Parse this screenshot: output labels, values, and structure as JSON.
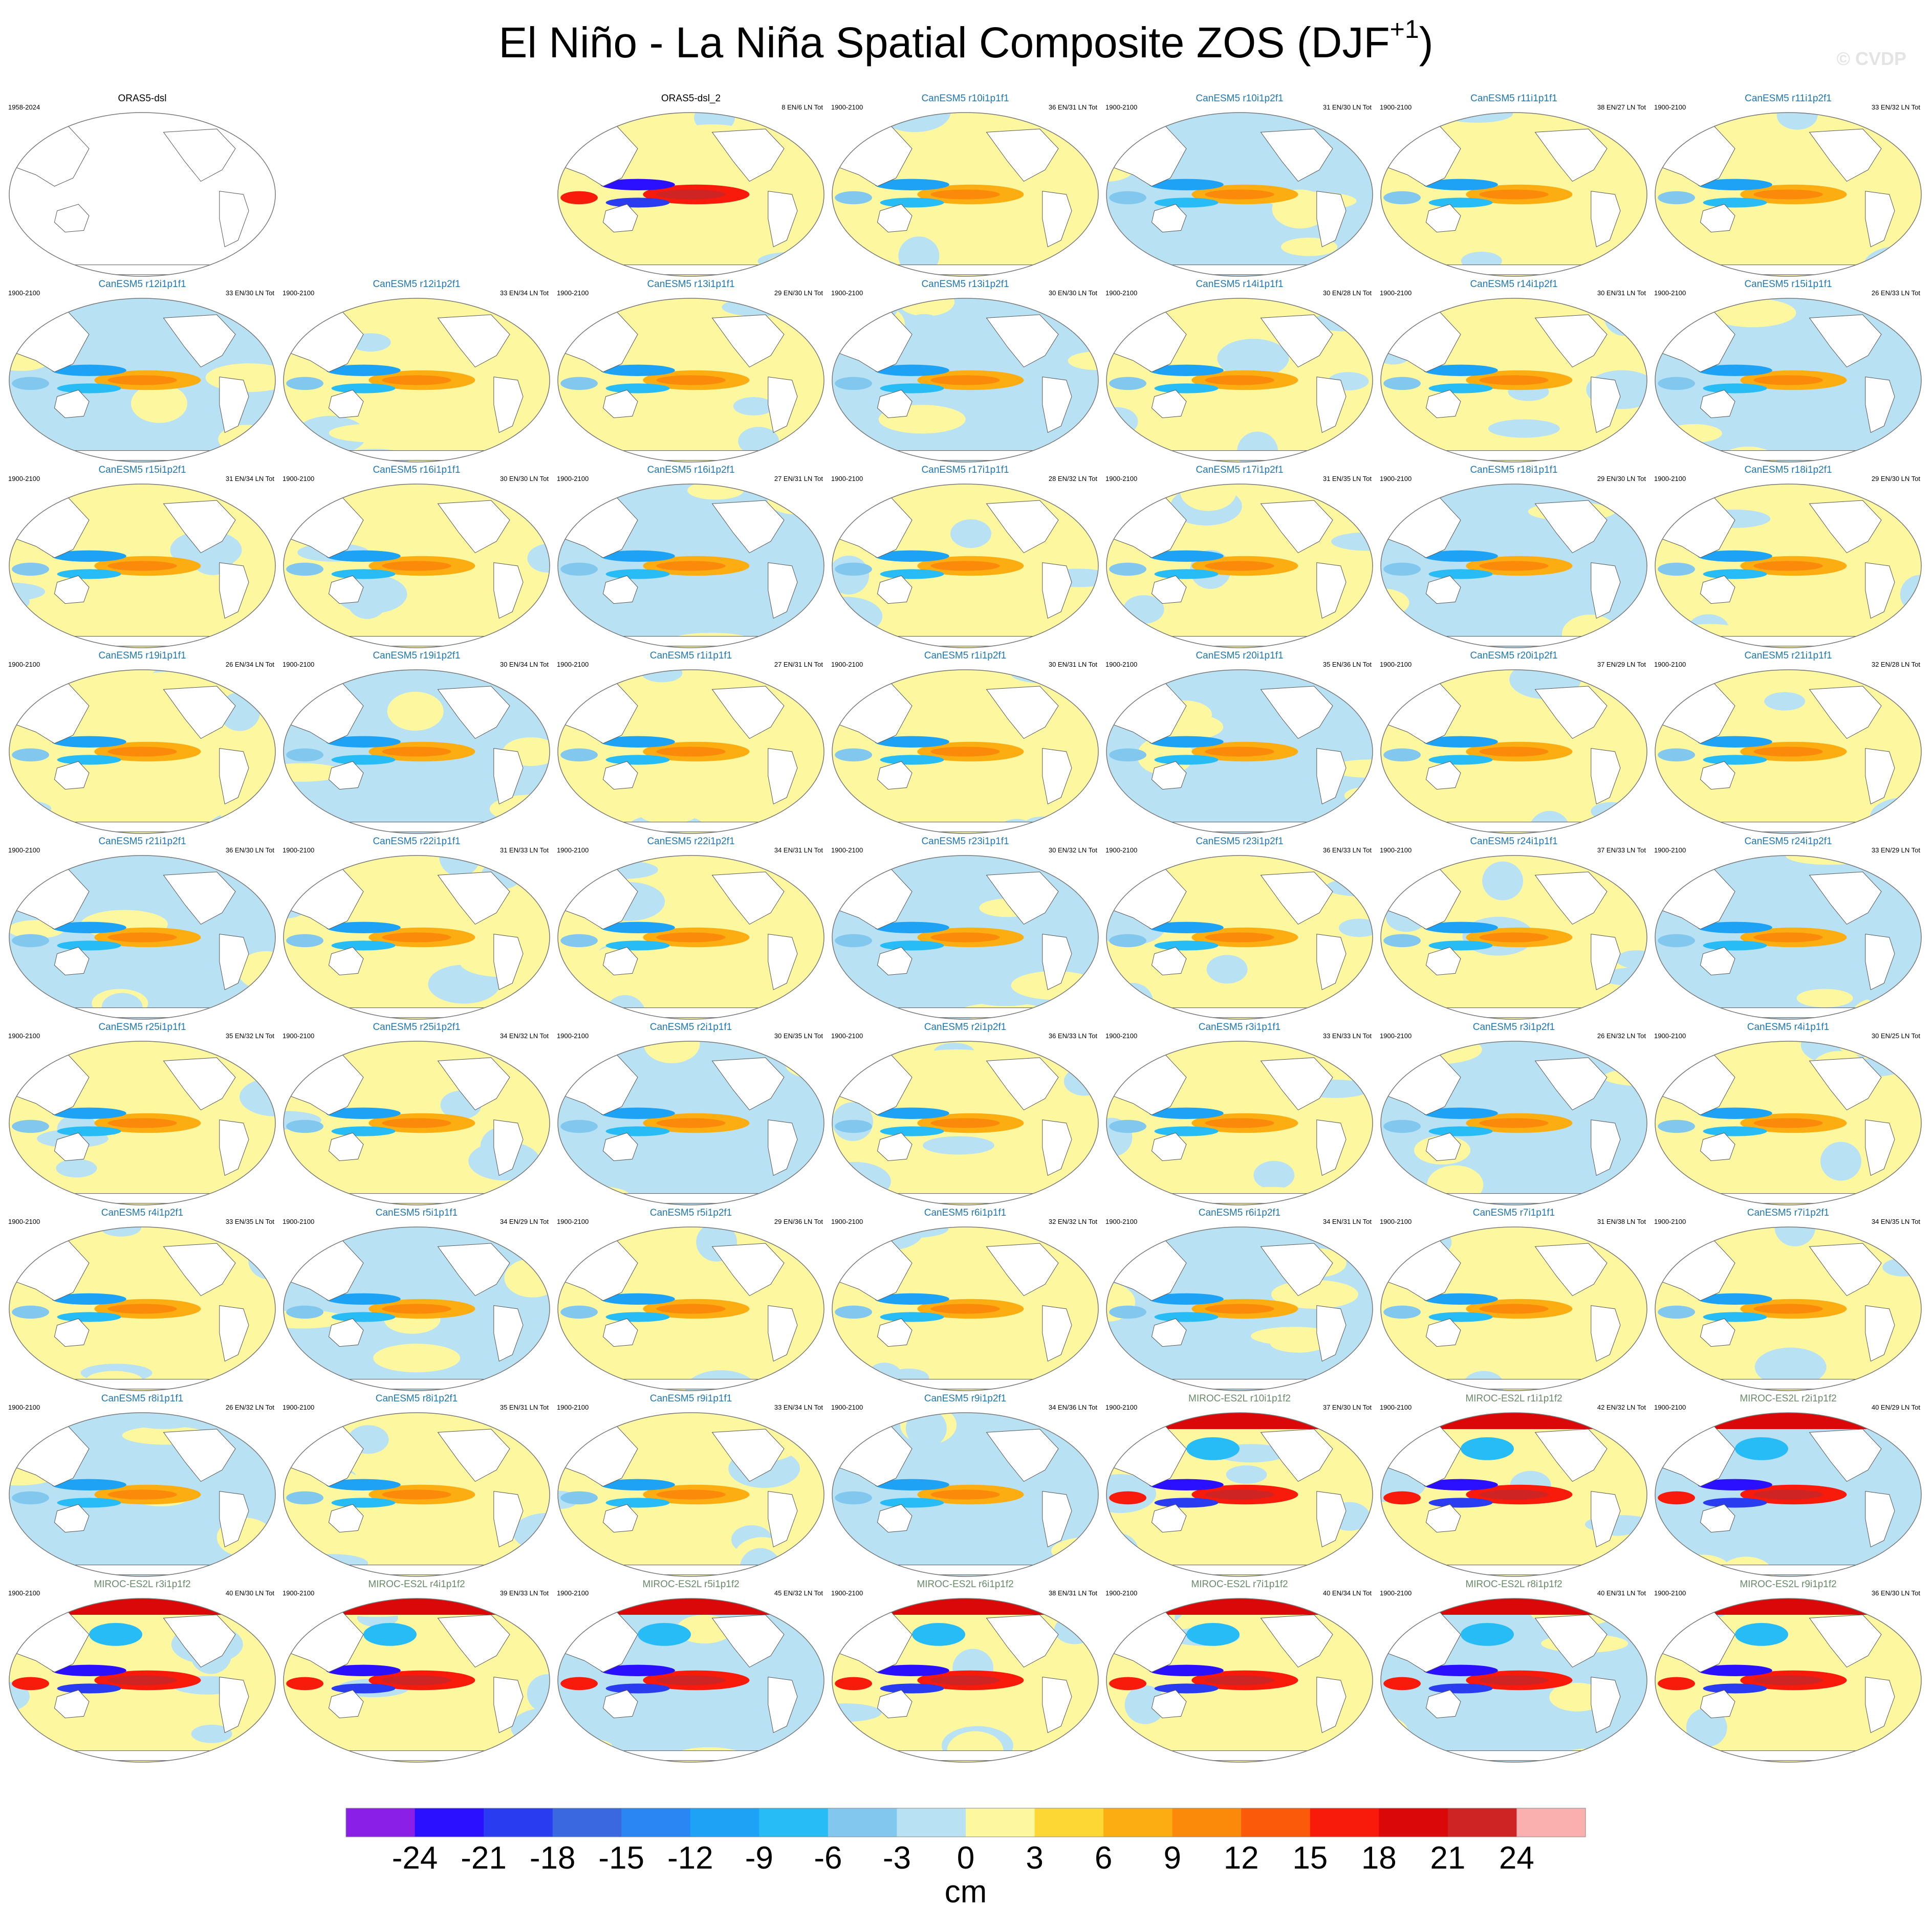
{
  "title_main": "El Niño - La Niña Spatial Composite ZOS (DJF",
  "title_sup": "+1",
  "title_end": ")",
  "credit": "© CVDP",
  "colors": {
    "land_outline": "#555555",
    "ensemble_title_canesm": "#1f77b4",
    "ensemble_title_miroc": "#6a8a6a",
    "obs_title": "#000000"
  },
  "colorbar": {
    "unit": "cm",
    "tick_labels": [
      "-24",
      "-21",
      "-18",
      "-15",
      "-12",
      "-9",
      "-6",
      "-3",
      "0",
      "3",
      "6",
      "9",
      "12",
      "15",
      "18",
      "21",
      "24"
    ],
    "colors": [
      "#8a20e8",
      "#2a10ff",
      "#2a3cf0",
      "#3a68e0",
      "#2a86f2",
      "#1ea2f6",
      "#28bcf6",
      "#82c8ee",
      "#b8e2f4",
      "#fdf8a0",
      "#fdd835",
      "#fcad12",
      "#fb8a0a",
      "#fa5a0a",
      "#f81a0a",
      "#da0808",
      "#cf2424",
      "#fbb0b0"
    ]
  },
  "chart_data": {
    "type": "heatmap",
    "description_units": "cm",
    "panels": [
      {
        "title": "ORAS5-dsl",
        "period": "1958-2024",
        "events": "",
        "kind": "obs-empty"
      },
      {
        "title": "ORAS5-dsl_2",
        "period": "",
        "events": "8 EN/6 LN Tot",
        "kind": "obs"
      },
      {
        "title": "CanESM5 r10i1p1f1",
        "period": "1900-2100",
        "events": "36 EN/31 LN Tot",
        "kind": "canesm"
      },
      {
        "title": "CanESM5 r10i1p2f1",
        "period": "1900-2100",
        "events": "31 EN/30 LN Tot",
        "kind": "canesm"
      },
      {
        "title": "CanESM5 r11i1p1f1",
        "period": "1900-2100",
        "events": "38 EN/27 LN Tot",
        "kind": "canesm"
      },
      {
        "title": "CanESM5 r11i1p2f1",
        "period": "1900-2100",
        "events": "33 EN/32 LN Tot",
        "kind": "canesm"
      },
      {
        "title": "CanESM5 r12i1p1f1",
        "period": "1900-2100",
        "events": "33 EN/30 LN Tot",
        "kind": "canesm"
      },
      {
        "title": "CanESM5 r12i1p2f1",
        "period": "1900-2100",
        "events": "33 EN/34 LN Tot",
        "kind": "canesm"
      },
      {
        "title": "CanESM5 r13i1p1f1",
        "period": "1900-2100",
        "events": "29 EN/30 LN Tot",
        "kind": "canesm"
      },
      {
        "title": "CanESM5 r13i1p2f1",
        "period": "1900-2100",
        "events": "30 EN/30 LN Tot",
        "kind": "canesm"
      },
      {
        "title": "CanESM5 r14i1p1f1",
        "period": "1900-2100",
        "events": "30 EN/28 LN Tot",
        "kind": "canesm"
      },
      {
        "title": "CanESM5 r14i1p2f1",
        "period": "1900-2100",
        "events": "30 EN/31 LN Tot",
        "kind": "canesm"
      },
      {
        "title": "CanESM5 r15i1p1f1",
        "period": "1900-2100",
        "events": "26 EN/33 LN Tot",
        "kind": "canesm"
      },
      {
        "title": "CanESM5 r15i1p2f1",
        "period": "1900-2100",
        "events": "31 EN/34 LN Tot",
        "kind": "canesm"
      },
      {
        "title": "CanESM5 r16i1p1f1",
        "period": "1900-2100",
        "events": "30 EN/30 LN Tot",
        "kind": "canesm"
      },
      {
        "title": "CanESM5 r16i1p2f1",
        "period": "1900-2100",
        "events": "27 EN/31 LN Tot",
        "kind": "canesm"
      },
      {
        "title": "CanESM5 r17i1p1f1",
        "period": "1900-2100",
        "events": "28 EN/32 LN Tot",
        "kind": "canesm"
      },
      {
        "title": "CanESM5 r17i1p2f1",
        "period": "1900-2100",
        "events": "31 EN/35 LN Tot",
        "kind": "canesm"
      },
      {
        "title": "CanESM5 r18i1p1f1",
        "period": "1900-2100",
        "events": "29 EN/30 LN Tot",
        "kind": "canesm"
      },
      {
        "title": "CanESM5 r18i1p2f1",
        "period": "1900-2100",
        "events": "29 EN/30 LN Tot",
        "kind": "canesm"
      },
      {
        "title": "CanESM5 r19i1p1f1",
        "period": "1900-2100",
        "events": "26 EN/34 LN Tot",
        "kind": "canesm"
      },
      {
        "title": "CanESM5 r19i1p2f1",
        "period": "1900-2100",
        "events": "30 EN/34 LN Tot",
        "kind": "canesm"
      },
      {
        "title": "CanESM5 r1i1p1f1",
        "period": "1900-2100",
        "events": "27 EN/31 LN Tot",
        "kind": "canesm"
      },
      {
        "title": "CanESM5 r1i1p2f1",
        "period": "1900-2100",
        "events": "30 EN/31 LN Tot",
        "kind": "canesm"
      },
      {
        "title": "CanESM5 r20i1p1f1",
        "period": "1900-2100",
        "events": "35 EN/36 LN Tot",
        "kind": "canesm"
      },
      {
        "title": "CanESM5 r20i1p2f1",
        "period": "1900-2100",
        "events": "37 EN/29 LN Tot",
        "kind": "canesm"
      },
      {
        "title": "CanESM5 r21i1p1f1",
        "period": "1900-2100",
        "events": "32 EN/28 LN Tot",
        "kind": "canesm"
      },
      {
        "title": "CanESM5 r21i1p2f1",
        "period": "1900-2100",
        "events": "36 EN/30 LN Tot",
        "kind": "canesm"
      },
      {
        "title": "CanESM5 r22i1p1f1",
        "period": "1900-2100",
        "events": "31 EN/33 LN Tot",
        "kind": "canesm"
      },
      {
        "title": "CanESM5 r22i1p2f1",
        "period": "1900-2100",
        "events": "34 EN/31 LN Tot",
        "kind": "canesm"
      },
      {
        "title": "CanESM5 r23i1p1f1",
        "period": "1900-2100",
        "events": "30 EN/32 LN Tot",
        "kind": "canesm"
      },
      {
        "title": "CanESM5 r23i1p2f1",
        "period": "1900-2100",
        "events": "36 EN/33 LN Tot",
        "kind": "canesm"
      },
      {
        "title": "CanESM5 r24i1p1f1",
        "period": "1900-2100",
        "events": "37 EN/33 LN Tot",
        "kind": "canesm"
      },
      {
        "title": "CanESM5 r24i1p2f1",
        "period": "1900-2100",
        "events": "33 EN/29 LN Tot",
        "kind": "canesm"
      },
      {
        "title": "CanESM5 r25i1p1f1",
        "period": "1900-2100",
        "events": "35 EN/32 LN Tot",
        "kind": "canesm"
      },
      {
        "title": "CanESM5 r25i1p2f1",
        "period": "1900-2100",
        "events": "34 EN/32 LN Tot",
        "kind": "canesm"
      },
      {
        "title": "CanESM5 r2i1p1f1",
        "period": "1900-2100",
        "events": "30 EN/35 LN Tot",
        "kind": "canesm"
      },
      {
        "title": "CanESM5 r2i1p2f1",
        "period": "1900-2100",
        "events": "36 EN/33 LN Tot",
        "kind": "canesm"
      },
      {
        "title": "CanESM5 r3i1p1f1",
        "period": "1900-2100",
        "events": "33 EN/33 LN Tot",
        "kind": "canesm"
      },
      {
        "title": "CanESM5 r3i1p2f1",
        "period": "1900-2100",
        "events": "26 EN/32 LN Tot",
        "kind": "canesm"
      },
      {
        "title": "CanESM5 r4i1p1f1",
        "period": "1900-2100",
        "events": "30 EN/25 LN Tot",
        "kind": "canesm"
      },
      {
        "title": "CanESM5 r4i1p2f1",
        "period": "1900-2100",
        "events": "33 EN/35 LN Tot",
        "kind": "canesm"
      },
      {
        "title": "CanESM5 r5i1p1f1",
        "period": "1900-2100",
        "events": "34 EN/29 LN Tot",
        "kind": "canesm"
      },
      {
        "title": "CanESM5 r5i1p2f1",
        "period": "1900-2100",
        "events": "29 EN/36 LN Tot",
        "kind": "canesm"
      },
      {
        "title": "CanESM5 r6i1p1f1",
        "period": "1900-2100",
        "events": "32 EN/32 LN Tot",
        "kind": "canesm"
      },
      {
        "title": "CanESM5 r6i1p2f1",
        "period": "1900-2100",
        "events": "34 EN/31 LN Tot",
        "kind": "canesm"
      },
      {
        "title": "CanESM5 r7i1p1f1",
        "period": "1900-2100",
        "events": "31 EN/38 LN Tot",
        "kind": "canesm"
      },
      {
        "title": "CanESM5 r7i1p2f1",
        "period": "1900-2100",
        "events": "34 EN/35 LN Tot",
        "kind": "canesm"
      },
      {
        "title": "CanESM5 r8i1p1f1",
        "period": "1900-2100",
        "events": "26 EN/32 LN Tot",
        "kind": "canesm"
      },
      {
        "title": "CanESM5 r8i1p2f1",
        "period": "1900-2100",
        "events": "35 EN/31 LN Tot",
        "kind": "canesm"
      },
      {
        "title": "CanESM5 r9i1p1f1",
        "period": "1900-2100",
        "events": "33 EN/34 LN Tot",
        "kind": "canesm"
      },
      {
        "title": "CanESM5 r9i1p2f1",
        "period": "1900-2100",
        "events": "34 EN/36 LN Tot",
        "kind": "canesm"
      },
      {
        "title": "MIROC-ES2L r10i1p1f2",
        "period": "1900-2100",
        "events": "37 EN/30 LN Tot",
        "kind": "miroc"
      },
      {
        "title": "MIROC-ES2L r1i1p1f2",
        "period": "1900-2100",
        "events": "42 EN/32 LN Tot",
        "kind": "miroc"
      },
      {
        "title": "MIROC-ES2L r2i1p1f2",
        "period": "1900-2100",
        "events": "40 EN/29 LN Tot",
        "kind": "miroc"
      },
      {
        "title": "MIROC-ES2L r3i1p1f2",
        "period": "1900-2100",
        "events": "40 EN/30 LN Tot",
        "kind": "miroc"
      },
      {
        "title": "MIROC-ES2L r4i1p1f2",
        "period": "1900-2100",
        "events": "39 EN/33 LN Tot",
        "kind": "miroc"
      },
      {
        "title": "MIROC-ES2L r5i1p1f2",
        "period": "1900-2100",
        "events": "45 EN/32 LN Tot",
        "kind": "miroc"
      },
      {
        "title": "MIROC-ES2L r6i1p1f2",
        "period": "1900-2100",
        "events": "38 EN/31 LN Tot",
        "kind": "miroc"
      },
      {
        "title": "MIROC-ES2L r7i1p1f2",
        "period": "1900-2100",
        "events": "40 EN/34 LN Tot",
        "kind": "miroc"
      },
      {
        "title": "MIROC-ES2L r8i1p1f2",
        "period": "1900-2100",
        "events": "40 EN/31 LN Tot",
        "kind": "miroc"
      },
      {
        "title": "MIROC-ES2L r9i1p1f2",
        "period": "1900-2100",
        "events": "36 EN/30 LN Tot",
        "kind": "miroc"
      }
    ]
  }
}
